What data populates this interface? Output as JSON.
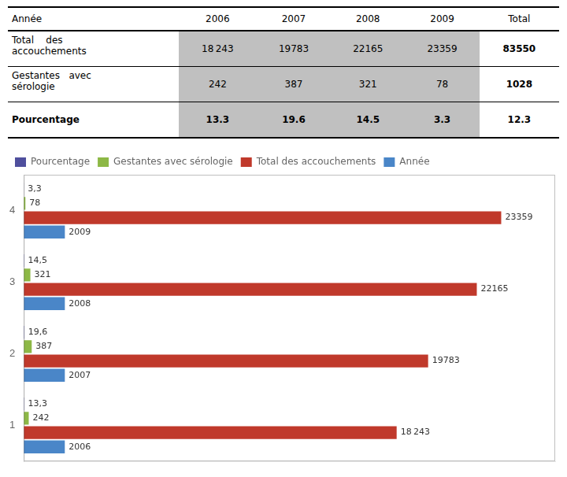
{
  "table": {
    "header": [
      "Année",
      "2006",
      "2007",
      "2008",
      "2009",
      "Total"
    ],
    "rows": [
      [
        "Total    des\naccouchements",
        "18 243",
        "19783",
        "22165",
        "23359",
        "83550"
      ],
      [
        "Gestantes   avec\nsérologie",
        "242",
        "387",
        "321",
        "78",
        "1028"
      ],
      [
        "Pourcentage",
        "13.3",
        "19.6",
        "14.5",
        "3.3",
        "12.3"
      ]
    ]
  },
  "chart_data": {
    "type": "bar",
    "orientation": "horizontal",
    "categories": [
      "1",
      "2",
      "3",
      "4"
    ],
    "series": [
      {
        "name": "Pourcentage",
        "color": "#4f4f9d",
        "values": [
          13.3,
          19.6,
          14.5,
          3.3
        ],
        "value_labels": [
          "13,3",
          "19,6",
          "14,5",
          "3,3"
        ]
      },
      {
        "name": "Gestantes avec sérologie",
        "color": "#8db846",
        "values": [
          242,
          387,
          321,
          78
        ]
      },
      {
        "name": "Total des accouchements",
        "color": "#c0392b",
        "values": [
          18243,
          19783,
          22165,
          23359
        ],
        "value_labels": [
          "18 243",
          "19783",
          "22165",
          "23359"
        ]
      },
      {
        "name": "Année",
        "color": "#4a86c8",
        "values": [
          2006,
          2007,
          2008,
          2009
        ]
      }
    ],
    "xlim": [
      0,
      26000
    ],
    "data_labels": true,
    "tick_labels": "y",
    "grid": false,
    "legend": "upper left"
  }
}
